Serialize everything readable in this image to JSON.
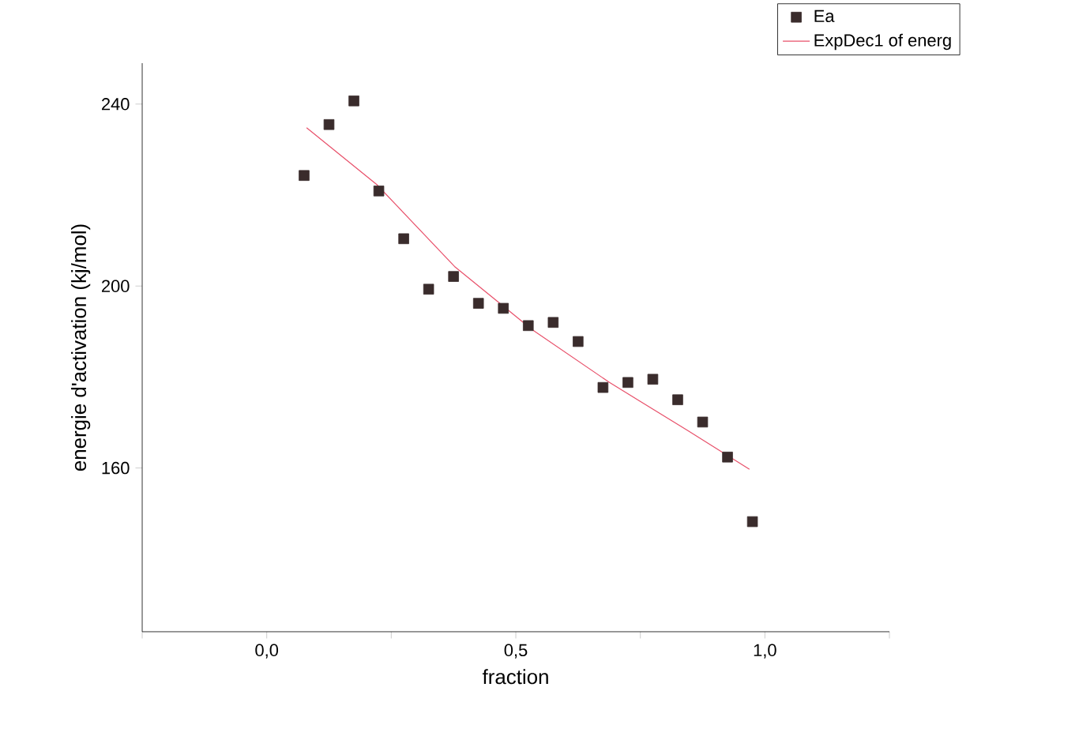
{
  "chart_data": {
    "type": "scatter",
    "xlabel": "fraction",
    "ylabel": "energie d'activation (kj/mol)",
    "xlim": [
      -0.25,
      1.25
    ],
    "ylim": [
      124,
      249
    ],
    "xticks": [
      {
        "value": -0.25,
        "label": null
      },
      {
        "value": 0,
        "label": "0,0"
      },
      {
        "value": 0.25,
        "label": null
      },
      {
        "value": 0.5,
        "label": "0,5"
      },
      {
        "value": 0.75,
        "label": null
      },
      {
        "value": 1,
        "label": "1,0"
      },
      {
        "value": 1.25,
        "label": null
      }
    ],
    "yticks": [
      160,
      200,
      240
    ],
    "legend": "top right",
    "marker": "square",
    "series": [
      {
        "name": "Ea",
        "color": "#3a2c2c",
        "x": [
          0.075,
          0.125,
          0.175,
          0.225,
          0.275,
          0.325,
          0.375,
          0.425,
          0.475,
          0.525,
          0.575,
          0.625,
          0.675,
          0.725,
          0.775,
          0.825,
          0.875,
          0.925,
          0.975
        ],
        "values": [
          224.3,
          235.5,
          240.7,
          220.9,
          210.4,
          199.3,
          202.1,
          196.2,
          195.1,
          191.3,
          192,
          187.8,
          177.7,
          178.8,
          179.5,
          175,
          170.1,
          162.4,
          148.2
        ]
      },
      {
        "name": "ExpDec1 of energ",
        "type": "line",
        "marker": "none",
        "color": "#e8506a",
        "x": [
          0.08,
          0.221,
          0.377,
          0.533,
          0.688,
          0.844,
          0.969
        ],
        "values": [
          234.8,
          222.3,
          204.3,
          190.4,
          178.8,
          168.3,
          159.7
        ]
      }
    ]
  }
}
